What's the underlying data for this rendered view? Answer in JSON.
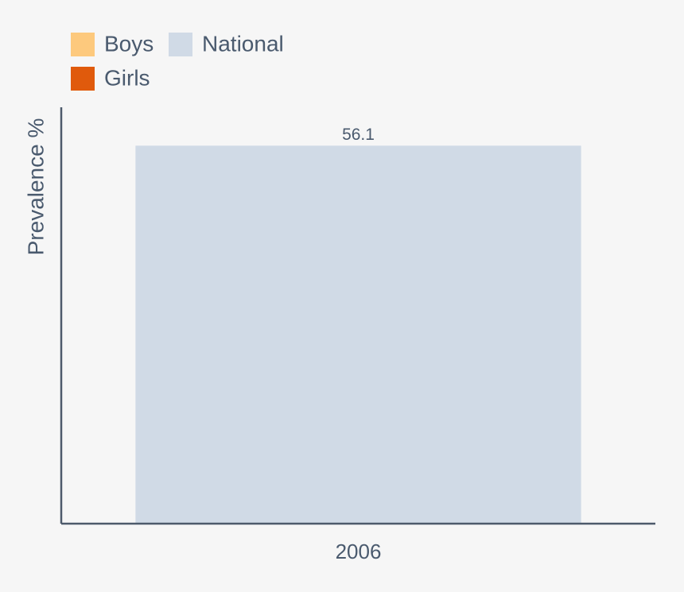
{
  "chart_data": {
    "type": "bar",
    "y_label": "Prevalence %",
    "categories": [
      "2006"
    ],
    "series": [
      {
        "name": "Boys",
        "color": "#fdc97d",
        "values": [
          null
        ]
      },
      {
        "name": "Girls",
        "color": "#e05a0c",
        "values": [
          null
        ]
      },
      {
        "name": "National",
        "color": "#d0dae6",
        "values": [
          56.1
        ]
      }
    ],
    "ylim": [
      0,
      61.8
    ]
  }
}
